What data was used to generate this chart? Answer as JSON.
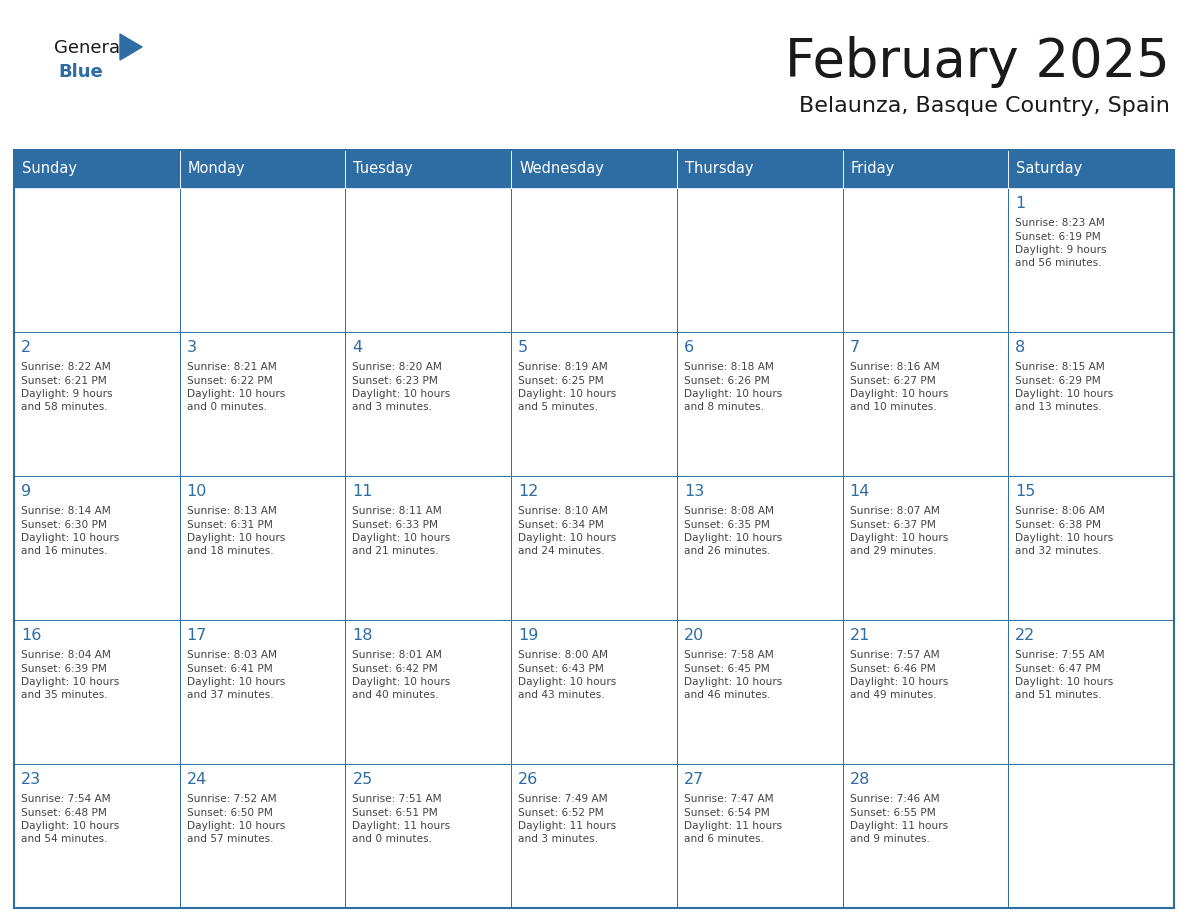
{
  "title": "February 2025",
  "subtitle": "Belaunza, Basque Country, Spain",
  "header_bg": "#2E6DA4",
  "header_text": "#FFFFFF",
  "cell_bg": "#FFFFFF",
  "border_color": "#2E6DA4",
  "cell_border_color": "#AAAAAA",
  "day_names": [
    "Sunday",
    "Monday",
    "Tuesday",
    "Wednesday",
    "Thursday",
    "Friday",
    "Saturday"
  ],
  "title_color": "#1a1a1a",
  "subtitle_color": "#1a1a1a",
  "number_color": "#2E6DA4",
  "text_color": "#444444",
  "logo_general_color": "#1a1a1a",
  "logo_blue_color": "#2E6DA4",
  "weeks": [
    [
      {
        "day": null,
        "info": ""
      },
      {
        "day": null,
        "info": ""
      },
      {
        "day": null,
        "info": ""
      },
      {
        "day": null,
        "info": ""
      },
      {
        "day": null,
        "info": ""
      },
      {
        "day": null,
        "info": ""
      },
      {
        "day": 1,
        "info": "Sunrise: 8:23 AM\nSunset: 6:19 PM\nDaylight: 9 hours\nand 56 minutes."
      }
    ],
    [
      {
        "day": 2,
        "info": "Sunrise: 8:22 AM\nSunset: 6:21 PM\nDaylight: 9 hours\nand 58 minutes."
      },
      {
        "day": 3,
        "info": "Sunrise: 8:21 AM\nSunset: 6:22 PM\nDaylight: 10 hours\nand 0 minutes."
      },
      {
        "day": 4,
        "info": "Sunrise: 8:20 AM\nSunset: 6:23 PM\nDaylight: 10 hours\nand 3 minutes."
      },
      {
        "day": 5,
        "info": "Sunrise: 8:19 AM\nSunset: 6:25 PM\nDaylight: 10 hours\nand 5 minutes."
      },
      {
        "day": 6,
        "info": "Sunrise: 8:18 AM\nSunset: 6:26 PM\nDaylight: 10 hours\nand 8 minutes."
      },
      {
        "day": 7,
        "info": "Sunrise: 8:16 AM\nSunset: 6:27 PM\nDaylight: 10 hours\nand 10 minutes."
      },
      {
        "day": 8,
        "info": "Sunrise: 8:15 AM\nSunset: 6:29 PM\nDaylight: 10 hours\nand 13 minutes."
      }
    ],
    [
      {
        "day": 9,
        "info": "Sunrise: 8:14 AM\nSunset: 6:30 PM\nDaylight: 10 hours\nand 16 minutes."
      },
      {
        "day": 10,
        "info": "Sunrise: 8:13 AM\nSunset: 6:31 PM\nDaylight: 10 hours\nand 18 minutes."
      },
      {
        "day": 11,
        "info": "Sunrise: 8:11 AM\nSunset: 6:33 PM\nDaylight: 10 hours\nand 21 minutes."
      },
      {
        "day": 12,
        "info": "Sunrise: 8:10 AM\nSunset: 6:34 PM\nDaylight: 10 hours\nand 24 minutes."
      },
      {
        "day": 13,
        "info": "Sunrise: 8:08 AM\nSunset: 6:35 PM\nDaylight: 10 hours\nand 26 minutes."
      },
      {
        "day": 14,
        "info": "Sunrise: 8:07 AM\nSunset: 6:37 PM\nDaylight: 10 hours\nand 29 minutes."
      },
      {
        "day": 15,
        "info": "Sunrise: 8:06 AM\nSunset: 6:38 PM\nDaylight: 10 hours\nand 32 minutes."
      }
    ],
    [
      {
        "day": 16,
        "info": "Sunrise: 8:04 AM\nSunset: 6:39 PM\nDaylight: 10 hours\nand 35 minutes."
      },
      {
        "day": 17,
        "info": "Sunrise: 8:03 AM\nSunset: 6:41 PM\nDaylight: 10 hours\nand 37 minutes."
      },
      {
        "day": 18,
        "info": "Sunrise: 8:01 AM\nSunset: 6:42 PM\nDaylight: 10 hours\nand 40 minutes."
      },
      {
        "day": 19,
        "info": "Sunrise: 8:00 AM\nSunset: 6:43 PM\nDaylight: 10 hours\nand 43 minutes."
      },
      {
        "day": 20,
        "info": "Sunrise: 7:58 AM\nSunset: 6:45 PM\nDaylight: 10 hours\nand 46 minutes."
      },
      {
        "day": 21,
        "info": "Sunrise: 7:57 AM\nSunset: 6:46 PM\nDaylight: 10 hours\nand 49 minutes."
      },
      {
        "day": 22,
        "info": "Sunrise: 7:55 AM\nSunset: 6:47 PM\nDaylight: 10 hours\nand 51 minutes."
      }
    ],
    [
      {
        "day": 23,
        "info": "Sunrise: 7:54 AM\nSunset: 6:48 PM\nDaylight: 10 hours\nand 54 minutes."
      },
      {
        "day": 24,
        "info": "Sunrise: 7:52 AM\nSunset: 6:50 PM\nDaylight: 10 hours\nand 57 minutes."
      },
      {
        "day": 25,
        "info": "Sunrise: 7:51 AM\nSunset: 6:51 PM\nDaylight: 11 hours\nand 0 minutes."
      },
      {
        "day": 26,
        "info": "Sunrise: 7:49 AM\nSunset: 6:52 PM\nDaylight: 11 hours\nand 3 minutes."
      },
      {
        "day": 27,
        "info": "Sunrise: 7:47 AM\nSunset: 6:54 PM\nDaylight: 11 hours\nand 6 minutes."
      },
      {
        "day": 28,
        "info": "Sunrise: 7:46 AM\nSunset: 6:55 PM\nDaylight: 11 hours\nand 9 minutes."
      },
      {
        "day": null,
        "info": ""
      }
    ]
  ]
}
